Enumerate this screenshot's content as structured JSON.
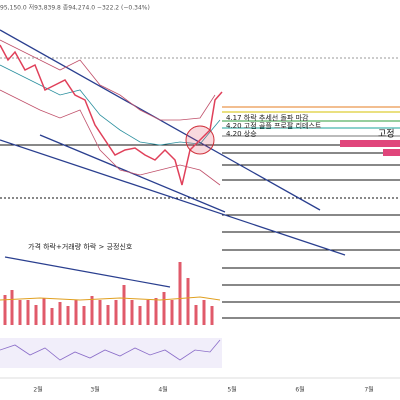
{
  "header": {
    "ohlc": "95,150.0 저93,839.8 종94,274.0 −322.2 (−0.34%)"
  },
  "annotations": {
    "breakout": "4.17 하락 추세선 돌파 마감",
    "retest": "4.20 고점 골플 프로팔 리테스트",
    "rise": "4.20 상승",
    "volume_note": "가격 하락+거래량 하락 > 긍정신호",
    "right_label": "고정"
  },
  "x_axis": {
    "labels": [
      "2월",
      "3월",
      "4월",
      "5월",
      "6월",
      "7월"
    ]
  }
}
